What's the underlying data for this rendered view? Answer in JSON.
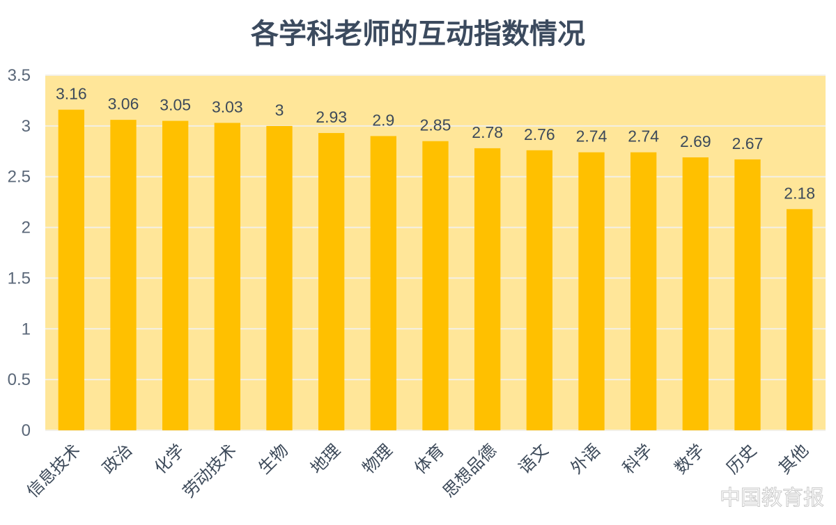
{
  "watermark": "中国教育报",
  "colors": {
    "plot_bg": "#FFE699",
    "bar": "#FFC000",
    "grid": "#F3F0E6",
    "title": "#3B4A5E"
  },
  "chart_data": {
    "type": "bar",
    "title": "各学科老师的互动指数情况",
    "categories": [
      "信息技术",
      "政治",
      "化学",
      "劳动技术",
      "生物",
      "地理",
      "物理",
      "体育",
      "思想品德",
      "语文",
      "外语",
      "科学",
      "数学",
      "历史",
      "其他"
    ],
    "values": [
      3.16,
      3.06,
      3.05,
      3.03,
      3,
      2.93,
      2.9,
      2.85,
      2.78,
      2.76,
      2.74,
      2.74,
      2.69,
      2.67,
      2.18
    ],
    "data_labels": [
      "3.16",
      "3.06",
      "3.05",
      "3.03",
      "3",
      "2.93",
      "2.9",
      "2.85",
      "2.78",
      "2.76",
      "2.74",
      "2.74",
      "2.69",
      "2.67",
      "2.18"
    ],
    "yticks": [
      "0",
      "0.5",
      "1",
      "1.5",
      "2",
      "2.5",
      "3",
      "3.5"
    ],
    "ylim": [
      0,
      3.5
    ],
    "xlabel": "",
    "ylabel": "",
    "grid": true,
    "legend": "none"
  }
}
